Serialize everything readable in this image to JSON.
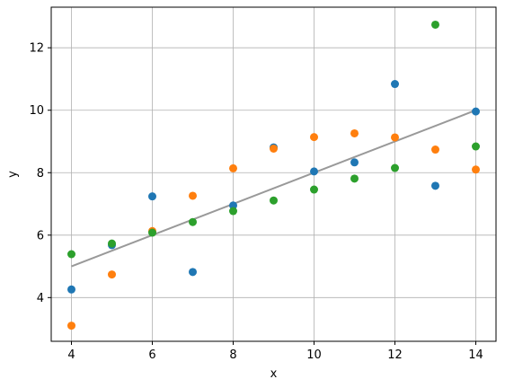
{
  "chart_data": {
    "type": "scatter",
    "title": "",
    "xlabel": "x",
    "ylabel": "y",
    "xlim": [
      3.5,
      14.5
    ],
    "ylim": [
      2.6,
      13.3
    ],
    "x_ticks": [
      4,
      6,
      8,
      10,
      12,
      14
    ],
    "y_ticks": [
      4,
      6,
      8,
      10,
      12
    ],
    "grid": true,
    "series": [
      {
        "color": "#1f77b4",
        "x": [
          4,
          5,
          6,
          7,
          8,
          9,
          10,
          11,
          12,
          13,
          14
        ],
        "y": [
          4.26,
          5.68,
          7.24,
          4.82,
          6.95,
          8.81,
          8.04,
          8.33,
          10.84,
          7.58,
          9.96
        ]
      },
      {
        "color": "#ff7f0e",
        "x": [
          4,
          5,
          6,
          7,
          8,
          9,
          10,
          11,
          12,
          13,
          14
        ],
        "y": [
          3.1,
          4.74,
          6.13,
          7.26,
          8.14,
          8.77,
          9.14,
          9.26,
          9.13,
          8.74,
          8.1
        ]
      },
      {
        "color": "#2ca02c",
        "x": [
          4,
          5,
          6,
          7,
          8,
          9,
          10,
          11,
          12,
          13,
          14
        ],
        "y": [
          5.39,
          5.73,
          6.08,
          6.42,
          6.77,
          7.11,
          7.46,
          7.81,
          8.15,
          12.74,
          8.84
        ]
      }
    ],
    "fit_line": {
      "color": "#999999",
      "x": [
        4,
        14
      ],
      "y": [
        5.0,
        10.0
      ]
    }
  }
}
